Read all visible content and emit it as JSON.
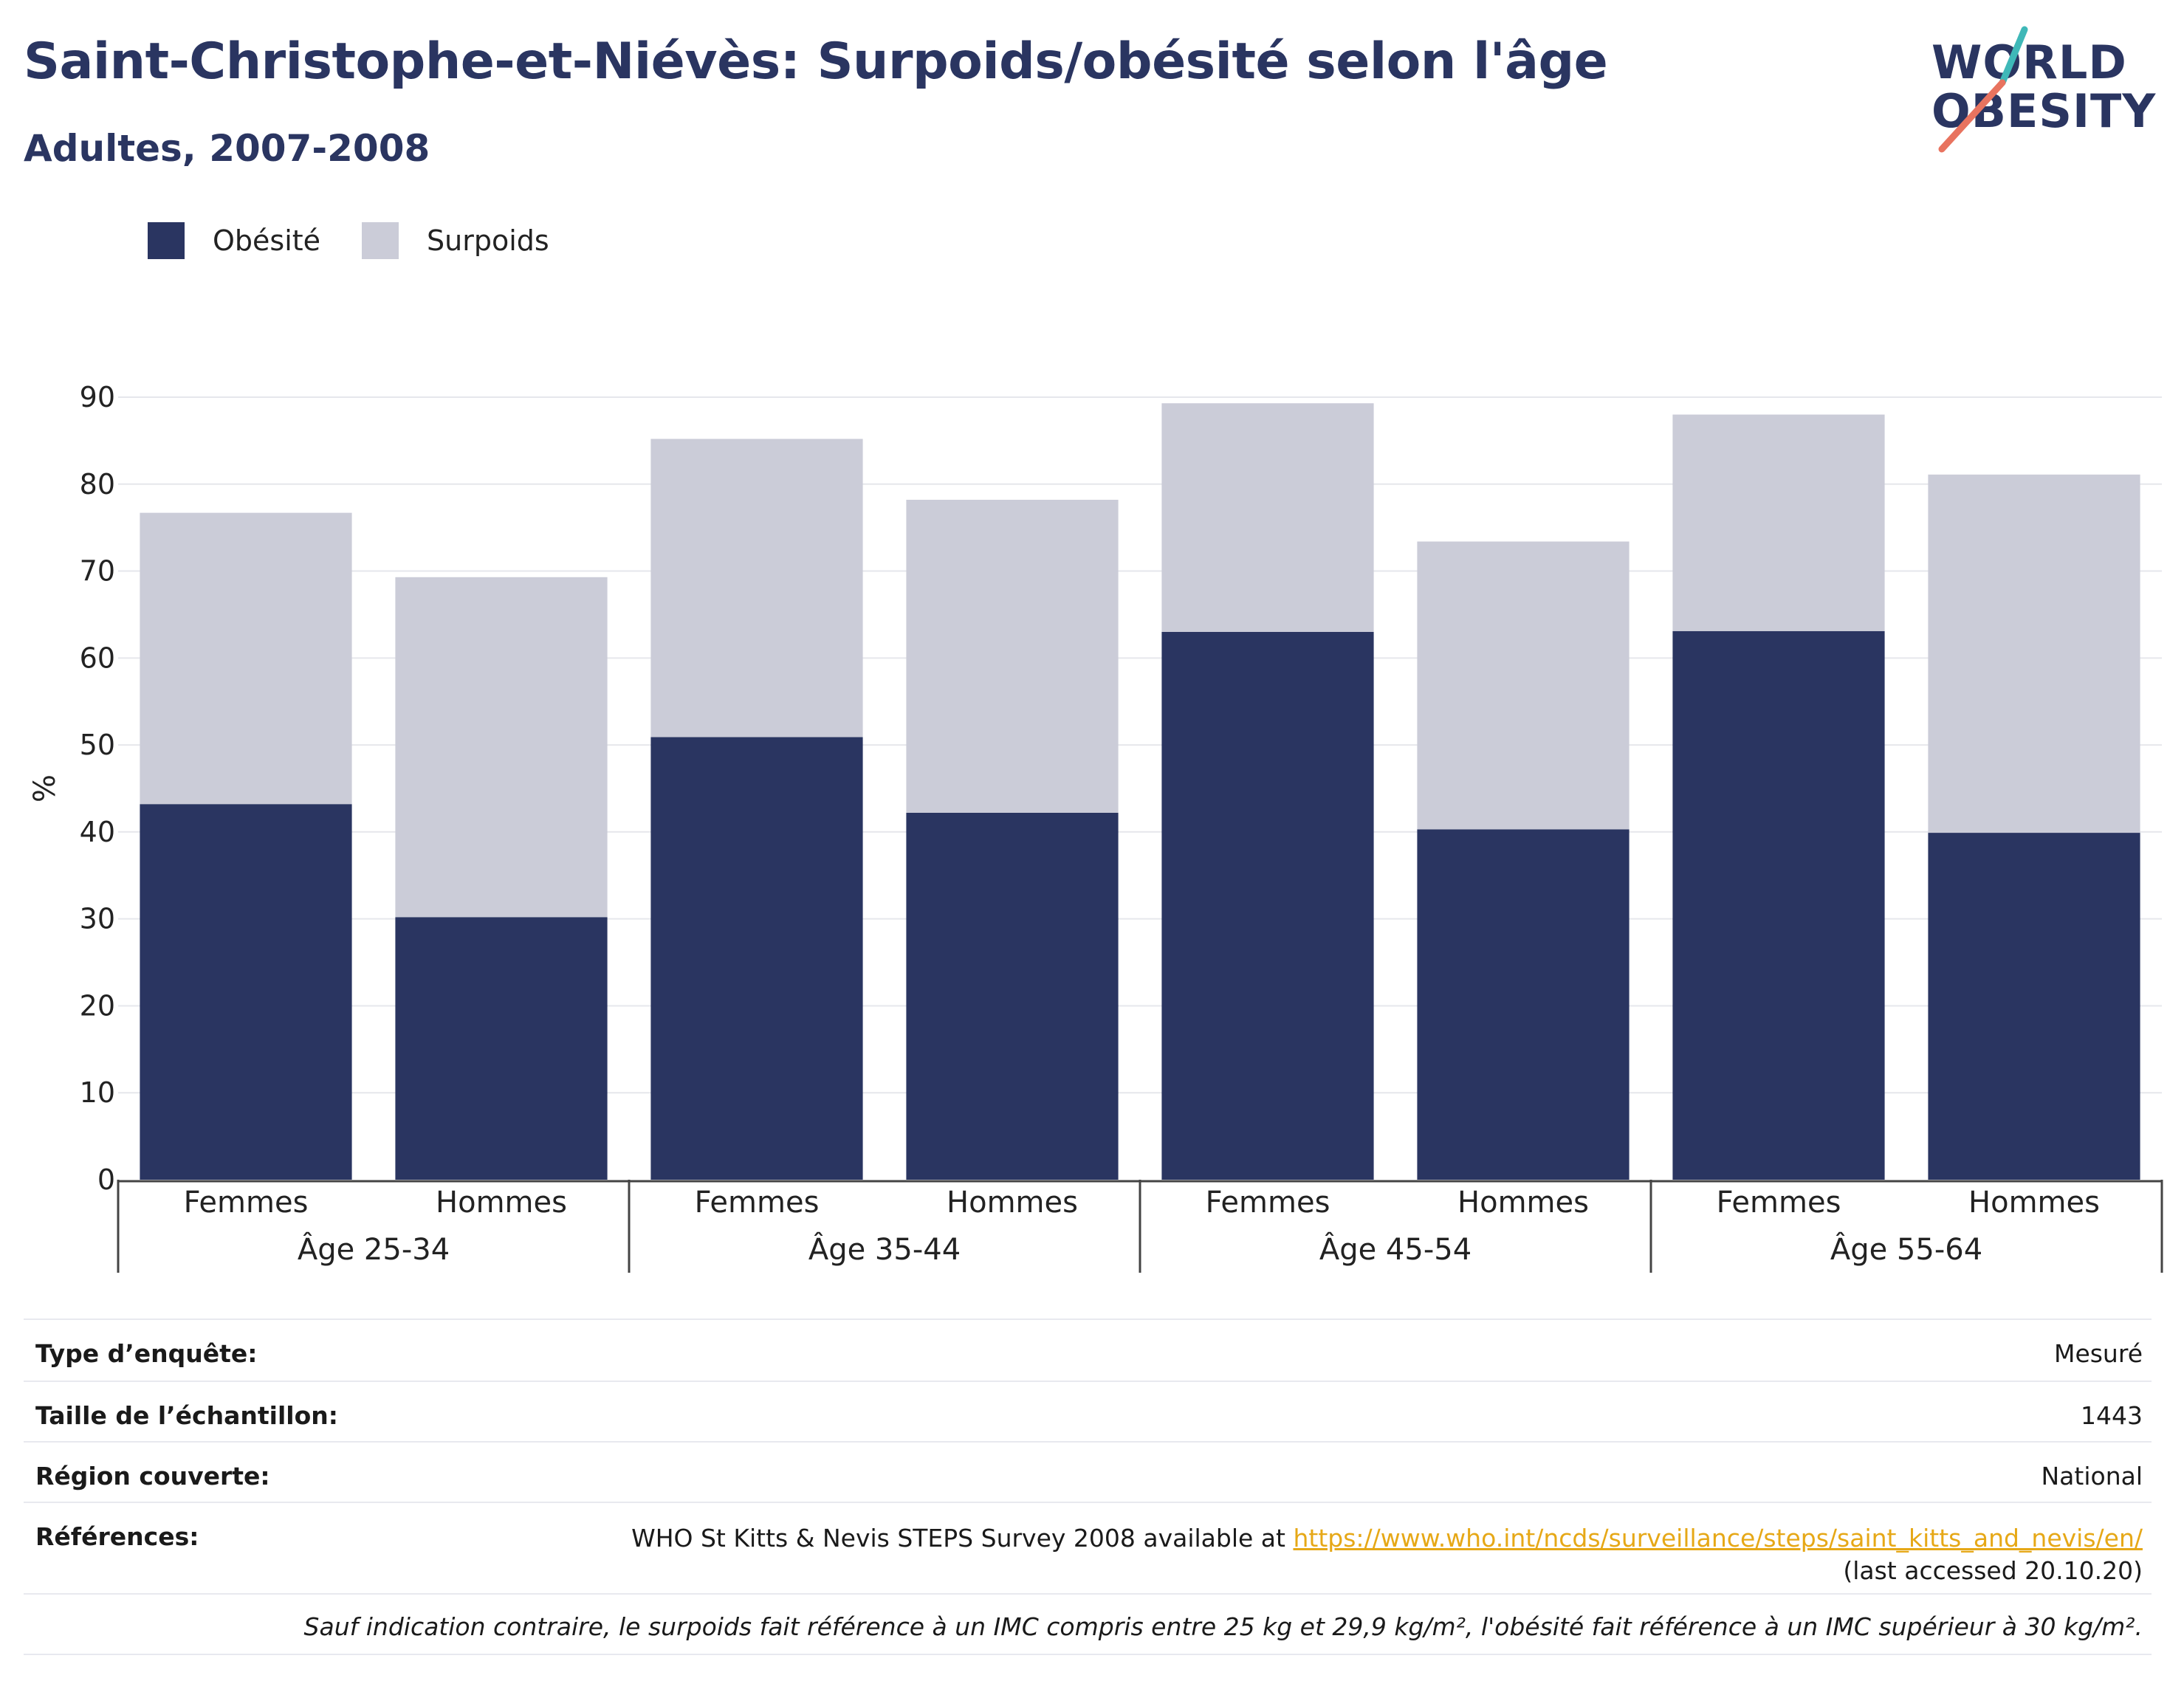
{
  "header": {
    "title": "Saint-Christophe-et-Niévès: Surpoids/obésité selon l'âge",
    "subtitle": "Adultes, 2007-2008"
  },
  "logo": {
    "line1": "WORLD",
    "line2": "OBESITY"
  },
  "legend": {
    "items": [
      "Obésité",
      "Surpoids"
    ]
  },
  "colors": {
    "obesity": "#2a3561",
    "overweight": "#cbccd8",
    "grid": "#e6e7ec",
    "axis": "#444444",
    "link": "#e6a817",
    "brand_teal": "#3fb8b8",
    "brand_coral": "#e8735f"
  },
  "chart_data": {
    "type": "bar",
    "stacked": true,
    "ylabel": "%",
    "ylim": [
      0,
      90
    ],
    "yticks": [
      0,
      10,
      20,
      30,
      40,
      50,
      60,
      70,
      80,
      90
    ],
    "grid": true,
    "legend_position": "top-left",
    "groups": [
      "Âge 25-34",
      "Âge 35-44",
      "Âge 45-54",
      "Âge 55-64"
    ],
    "categories": [
      "Femmes",
      "Hommes",
      "Femmes",
      "Hommes",
      "Femmes",
      "Hommes",
      "Femmes",
      "Hommes"
    ],
    "series": [
      {
        "name": "Obésité",
        "values": [
          43.2,
          30.2,
          50.9,
          42.2,
          63.0,
          40.3,
          63.1,
          39.9
        ]
      },
      {
        "name": "Surpoids",
        "values": [
          33.5,
          39.1,
          34.3,
          36.0,
          26.3,
          33.1,
          24.9,
          41.2
        ]
      }
    ]
  },
  "info": {
    "survey_type_label": "Type d’enquête:",
    "survey_type_value": "Mesuré",
    "sample_size_label": "Taille de l’échantillon:",
    "sample_size_value": "1443",
    "region_label": "Région couverte:",
    "region_value": "National",
    "references_label": "Références:",
    "references_text": "WHO St Kitts & Nevis STEPS Survey 2008 available at ",
    "references_link": "https://www.who.int/ncds/surveillance/steps/saint_kitts_and_nevis/en/",
    "references_suffix": " (last accessed 20.10.20)",
    "note": "Sauf indication contraire, le surpoids fait référence à un IMC compris entre 25 kg et 29,9 kg/m², l'obésité fait référence à un IMC supérieur à 30 kg/m²."
  }
}
